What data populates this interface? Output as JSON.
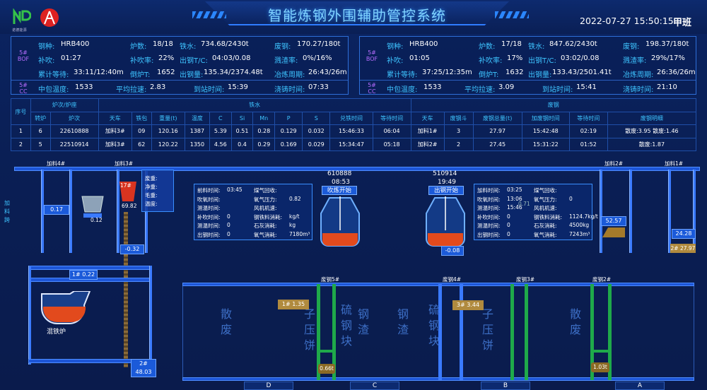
{
  "header": {
    "title": "智能炼钢外围辅助管控系统",
    "datetime": "2022-07-27 15:50:15",
    "shift": "甲班",
    "logo_text": "诺德能源"
  },
  "left_panel": {
    "bof_tag": "5#\nBOF",
    "cc_tag": "5#\nCC",
    "r1": {
      "gangzhong_l": "钢种:",
      "gangzhong_v": "HRB400",
      "lushu_l": "炉数:",
      "lushu_v": "18/18",
      "tieshui_l": "铁水:",
      "tieshui_v": "734.68/2430t",
      "feigang_l": "废钢:",
      "feigang_v": "170.27/180t"
    },
    "r2": {
      "buchui_l": "补吹:",
      "buchui_v": "01:27",
      "buchuilv_l": "补吹率:",
      "buchuilv_v": "22%",
      "chugang_l": "出钢T/C:",
      "chugang_v": "04:03/0.08",
      "jianzhuolv_l": "溅渣率:",
      "jianzhuolv_v": "0%/16%"
    },
    "r3": {
      "leiji_l": "累计等待:",
      "leiji_v": "33:11/12:40m",
      "dt_l": "倒炉T:",
      "dt_v": "1652",
      "cgl_l": "出钢量:",
      "cgl_v": "135.34/2374.48t",
      "yl_l": "冶炼周期:",
      "yl_v": "26:43/26m"
    },
    "r4": {
      "zb_l": "中包温度:",
      "zb_v": "1533",
      "lasu_l": "平均拉速:",
      "lasu_v": "2.83",
      "dz_l": "到站时间:",
      "dz_v": "15:39",
      "jz_l": "浇铸时间:",
      "jz_v": "07:33"
    }
  },
  "right_panel": {
    "bof_tag": "5#\nBOF",
    "cc_tag": "5#\nCC",
    "r1": {
      "gangzhong_l": "钢种:",
      "gangzhong_v": "HRB400",
      "lushu_l": "炉数:",
      "lushu_v": "17/18",
      "tieshui_l": "铁水:",
      "tieshui_v": "847.62/2430t",
      "feigang_l": "废钢:",
      "feigang_v": "198.37/180t"
    },
    "r2": {
      "buchui_l": "补吹:",
      "buchui_v": "01:05",
      "buchuilv_l": "补吹率:",
      "buchuilv_v": "17%",
      "chugang_l": "出钢T/C:",
      "chugang_v": "03:02/0.08",
      "jianzhuolv_l": "溅渣率:",
      "jianzhuolv_v": "29%/17%"
    },
    "r3": {
      "leiji_l": "累计等待:",
      "leiji_v": "37:25/12:35m",
      "dt_l": "倒炉T:",
      "dt_v": "1632",
      "cgl_l": "出钢量:",
      "cgl_v": "133.43/2501.41t",
      "yl_l": "冶炼周期:",
      "yl_v": "26:36/26m"
    },
    "r4": {
      "zb_l": "中包温度:",
      "zb_v": "1533",
      "lasu_l": "平均拉速:",
      "lasu_v": "3.09",
      "dz_l": "到站时间:",
      "dz_v": "15:41",
      "jz_l": "浇铸时间:",
      "jz_v": "21:10"
    }
  },
  "table": {
    "group_headers": [
      "炉次/炉座",
      "铁水",
      "废钢"
    ],
    "headers": [
      "序号",
      "转炉",
      "炉次",
      "天车",
      "铁包",
      "重量(t)",
      "温度",
      "C",
      "Si",
      "Mn",
      "P",
      "S",
      "兑铁时间",
      "等待时间",
      "天车",
      "废钢斗",
      "废钢总量(t)",
      "加废钢时间",
      "等待时间",
      "废钢明细"
    ],
    "rows": [
      [
        "1",
        "6",
        "22610888",
        "加料3#",
        "09",
        "120.16",
        "1387",
        "5.39",
        "0.51",
        "0.28",
        "0.129",
        "0.032",
        "15:46:33",
        "06:04",
        "加料1#",
        "3",
        "27.97",
        "15:42:48",
        "02:19",
        "散废:3.95  散废:1.46"
      ],
      [
        "2",
        "5",
        "22510914",
        "加料3#",
        "62",
        "120.22",
        "1350",
        "4.56",
        "0.4",
        "0.29",
        "0.169",
        "0.029",
        "15:34:47",
        "05:18",
        "加料2#",
        "2",
        "27.45",
        "15:31:22",
        "01:52",
        "散废:1.87"
      ]
    ]
  },
  "scene": {
    "crane4": "加料4#",
    "crane3": "加料3#",
    "crane2": "加料2#",
    "crane1": "加料1#",
    "side_label": "加料跨",
    "val_017": "0.17",
    "ladle_17": "17#",
    "val_6982": "69.82",
    "val_012": "0.12",
    "val_032": "-0.32",
    "menu": [
      "废重:",
      "净重:",
      "毛重:",
      "温度:"
    ],
    "conv_left": {
      "id": "610888",
      "time": "08:53",
      "status": "吹炼开始"
    },
    "conv_right": {
      "id": "510914",
      "time": "19:49",
      "status": "出钢开始",
      "val": "-0.08"
    },
    "info_left": [
      [
        "前料时间:",
        "03:45"
      ],
      [
        "煤气回收:",
        ""
      ],
      [
        "吹氧时间:",
        ""
      ],
      [
        "氧气压力:",
        "0.82"
      ],
      [
        "测温时间:",
        ""
      ],
      [
        "风机机速:",
        ""
      ],
      [
        "补吹时间:",
        "0"
      ],
      [
        "钢铁料消耗:",
        "kg/t"
      ],
      [
        "测温时间:",
        "0"
      ],
      [
        "石灰消耗:",
        "kg"
      ],
      [
        "出钢时间:",
        "0"
      ],
      [
        "氧气消耗:",
        "7180m³"
      ]
    ],
    "info_right": [
      [
        "加料时间:",
        "03:25"
      ],
      [
        "煤气回收:",
        ""
      ],
      [
        "吹氧时间:",
        "13:06"
      ],
      [
        "氧气压力:",
        "0"
      ],
      [
        "测温时间:",
        "15:46"
      ],
      [
        "风机机速:",
        ""
      ],
      [
        "补吹时间:",
        "0"
      ],
      [
        "钢铁料消耗:",
        "1124.7kg/t"
      ],
      [
        "测温时间:",
        "0"
      ],
      [
        "石灰消耗:",
        "4500kg"
      ],
      [
        "出钢时间:",
        "0"
      ],
      [
        "氧气消耗:",
        "7243m³"
      ]
    ],
    "right_vals": {
      "v5257": "52.57",
      "v2428": "24.28",
      "v2797": "2# 27.97",
      "info_071": "0.71"
    },
    "mixer": {
      "label": "混铁炉",
      "rail1": "1# 0.22",
      "rail2": "2# 48.03"
    },
    "scrap": {
      "cranes": [
        "废钢5#",
        "废钢4#",
        "废钢3#",
        "废钢2#"
      ],
      "zones": [
        "散废",
        "子压饼",
        "钢渣",
        "硫钢块",
        "钢渣",
        "硫钢块",
        "子压饼",
        "散废"
      ],
      "box1": "1# 1.35",
      "box2": "3# 3.44",
      "v066": "0.66t",
      "v103": "1.03t"
    },
    "bays": [
      "D",
      "C",
      "B",
      "A"
    ]
  }
}
